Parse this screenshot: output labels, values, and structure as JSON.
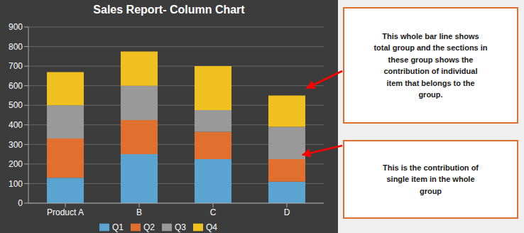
{
  "chart_data": {
    "type": "bar",
    "stacked": true,
    "title": "Sales Report- Column Chart",
    "categories": [
      "Product A",
      "B",
      "C",
      "D"
    ],
    "series": [
      {
        "name": "Q1",
        "color": "#5ba3d0",
        "values": [
          130,
          250,
          225,
          110
        ]
      },
      {
        "name": "Q2",
        "color": "#e07030",
        "values": [
          200,
          175,
          140,
          115
        ]
      },
      {
        "name": "Q3",
        "color": "#999999",
        "values": [
          170,
          175,
          110,
          165
        ]
      },
      {
        "name": "Q4",
        "color": "#f0c020",
        "values": [
          170,
          175,
          225,
          160
        ]
      }
    ],
    "ylim": [
      0,
      900
    ],
    "yticks": [
      0,
      100,
      200,
      300,
      400,
      500,
      600,
      700,
      800,
      900
    ],
    "grid": true,
    "legend": "bottom",
    "annotations": [
      "This whole bar line shows\ntotal group and the sections in\nthese group shows the\ncontribution of individual\nitem that belongs to the\ngroup.",
      "This is the contribution of\nsingle item in the whole\ngroup"
    ]
  }
}
